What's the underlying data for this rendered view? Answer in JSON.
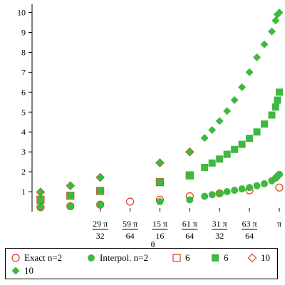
{
  "chart_data": {
    "type": "scatter",
    "xlabel": "θ",
    "ylabel": "",
    "xlim": [
      2.735,
      3.1416
    ],
    "ylim": [
      0,
      10.2
    ],
    "x_ticks": [
      {
        "value": 2.8471,
        "num": "29 π",
        "den": "32"
      },
      {
        "value": 2.8962,
        "num": "59 π",
        "den": "64"
      },
      {
        "value": 2.9452,
        "num": "15 π",
        "den": "16"
      },
      {
        "value": 2.9943,
        "num": "61 π",
        "den": "64"
      },
      {
        "value": 3.0434,
        "num": "31 π",
        "den": "32"
      },
      {
        "value": 3.0925,
        "num": "63 π",
        "den": "64"
      },
      {
        "value": 3.1416,
        "num": "π",
        "den": ""
      }
    ],
    "y_ticks": [
      1,
      2,
      3,
      4,
      5,
      6,
      7,
      8,
      9,
      10
    ],
    "series": [
      {
        "name": "Exact n=2",
        "marker": "circle-open",
        "color": "#d9411e",
        "x": [
          2.7489,
          2.798,
          2.8471,
          2.8962,
          2.9452,
          2.9943,
          3.0434,
          3.0925,
          3.1416
        ],
        "y": [
          0.22,
          0.27,
          0.35,
          0.5,
          0.59,
          0.77,
          0.92,
          1.07,
          1.21
        ]
      },
      {
        "name": "Interpol. n=2",
        "marker": "circle-filled",
        "color": "#3fb83f",
        "x": [
          2.7489,
          2.798,
          2.8471,
          2.9452,
          2.9943,
          3.0188,
          3.0311,
          3.0434,
          3.0557,
          3.0679,
          3.0802,
          3.0925,
          3.1048,
          3.117,
          3.1293,
          3.1355,
          3.1386,
          3.1416
        ],
        "y": [
          0.22,
          0.27,
          0.35,
          0.5,
          0.59,
          0.77,
          0.85,
          0.92,
          1.0,
          1.07,
          1.14,
          1.21,
          1.3,
          1.4,
          1.55,
          1.68,
          1.78,
          1.87
        ]
      },
      {
        "name": "6",
        "marker": "square-open",
        "color": "#d9411e",
        "x": [
          2.7489,
          2.798,
          2.8471,
          2.9452,
          2.9943
        ],
        "y": [
          0.6,
          0.8,
          1.04,
          1.48,
          1.82
        ]
      },
      {
        "name": "6",
        "marker": "square-filled",
        "color": "#3fb83f",
        "x": [
          2.7489,
          2.798,
          2.8471,
          2.9452,
          2.9943,
          3.0188,
          3.0311,
          3.0434,
          3.0557,
          3.0679,
          3.0802,
          3.0925,
          3.1048,
          3.117,
          3.1293,
          3.1355,
          3.1386,
          3.1416
        ],
        "y": [
          0.6,
          0.8,
          1.04,
          1.48,
          1.82,
          2.22,
          2.44,
          2.64,
          2.88,
          3.12,
          3.38,
          3.68,
          4.0,
          4.4,
          4.85,
          5.25,
          5.6,
          6.0
        ]
      },
      {
        "name": "10",
        "marker": "diamond-open",
        "color": "#d9411e",
        "x": [
          2.7489,
          2.798,
          2.8471,
          2.9452,
          2.9943
        ],
        "y": [
          0.98,
          1.3,
          1.72,
          2.45,
          3.0
        ]
      },
      {
        "name": "10",
        "marker": "diamond-filled",
        "color": "#3fb83f",
        "x": [
          2.7489,
          2.798,
          2.8471,
          2.9452,
          2.9943,
          3.0188,
          3.0311,
          3.0434,
          3.0557,
          3.0679,
          3.0802,
          3.0925,
          3.1048,
          3.117,
          3.1293,
          3.1355,
          3.1386,
          3.1416
        ],
        "y": [
          0.98,
          1.3,
          1.72,
          2.45,
          3.0,
          3.7,
          4.1,
          4.55,
          5.05,
          5.6,
          6.25,
          7.0,
          7.75,
          8.4,
          9.05,
          9.6,
          9.9,
          10.0
        ]
      }
    ],
    "legend_position": "bottom"
  },
  "legend": [
    {
      "label": "Exact n=2"
    },
    {
      "label": "Interpol. n=2"
    },
    {
      "label": "6"
    },
    {
      "label": "6"
    },
    {
      "label": "10"
    },
    {
      "label": "10"
    }
  ]
}
